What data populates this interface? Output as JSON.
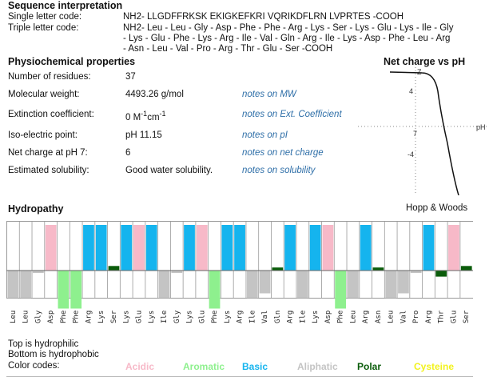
{
  "sequence": {
    "title": "Sequence interpretation",
    "single_label": "Single letter code:",
    "single_value": "NH2- LLGDFFRKSK EKIGKEFKRI VQRIKDFLRN LVPRTES -COOH",
    "triple_label": "Triple letter code:",
    "triple_lines": [
      "NH2- Leu - Leu - Gly - Asp - Phe - Phe - Arg - Lys - Ser - Lys - Glu - Lys - Ile - Gly",
      "- Lys - Glu - Phe - Lys - Arg - Ile - Val - Gln - Arg - Ile - Lys - Asp - Phe - Leu - Arg",
      "- Asn - Leu - Val - Pro - Arg - Thr - Glu - Ser -COOH"
    ]
  },
  "physio": {
    "title": "Physiochemical properties",
    "rows": [
      {
        "label": "Number of residues:",
        "value": "37",
        "note": ""
      },
      {
        "label": "Molecular weight:",
        "value": "4493.26 g/mol",
        "note": "notes on MW"
      },
      {
        "label": "Extinction coefficient:",
        "value": "0 M",
        "note": "notes on Ext. Coefficient"
      },
      {
        "label": "Iso-electric point:",
        "value": "pH 11.15",
        "note": "notes on pI"
      },
      {
        "label": "Net charge at pH 7:",
        "value": "6",
        "note": "notes on net charge"
      },
      {
        "label": "Estimated solubility:",
        "value": "Good water solubility.",
        "note": "notes on solubility"
      }
    ],
    "ext_units": {
      "sup1": "-1",
      "mid": "cm",
      "sup2": "-1"
    }
  },
  "charge_chart": {
    "title": "Net charge vs pH",
    "y_ticks": [
      "4",
      "-4"
    ],
    "y_axis_label": "Z",
    "x_tick": "7",
    "x_axis_label": "pH"
  },
  "hydropathy": {
    "title": "Hydropathy",
    "scale": "Hopp & Woods",
    "residues": [
      "Leu",
      "Leu",
      "Gly",
      "Asp",
      "Phe",
      "Phe",
      "Arg",
      "Lys",
      "Ser",
      "Lys",
      "Glu",
      "Lys",
      "Ile",
      "Gly",
      "Lys",
      "Glu",
      "Phe",
      "Lys",
      "Arg",
      "Ile",
      "Val",
      "Gln",
      "Arg",
      "Ile",
      "Lys",
      "Asp",
      "Phe",
      "Leu",
      "Arg",
      "Asn",
      "Leu",
      "Val",
      "Pro",
      "Arg",
      "Thr",
      "Glu",
      "Ser"
    ],
    "note_top": "Top is hydrophilic",
    "note_bottom": "Bottom is hydrophobic",
    "color_codes_label": "Color codes:",
    "legend": [
      {
        "name": "Acidic",
        "color": "#f7b9c8"
      },
      {
        "name": "Aromatic",
        "color": "#8ef08e"
      },
      {
        "name": "Basic",
        "color": "#15b4ee"
      },
      {
        "name": "Aliphatic",
        "color": "#c4c4c4"
      },
      {
        "name": "Polar",
        "color": "#0a5c0a"
      },
      {
        "name": "Cysteine",
        "color": "#f2f21e"
      }
    ]
  }
}
